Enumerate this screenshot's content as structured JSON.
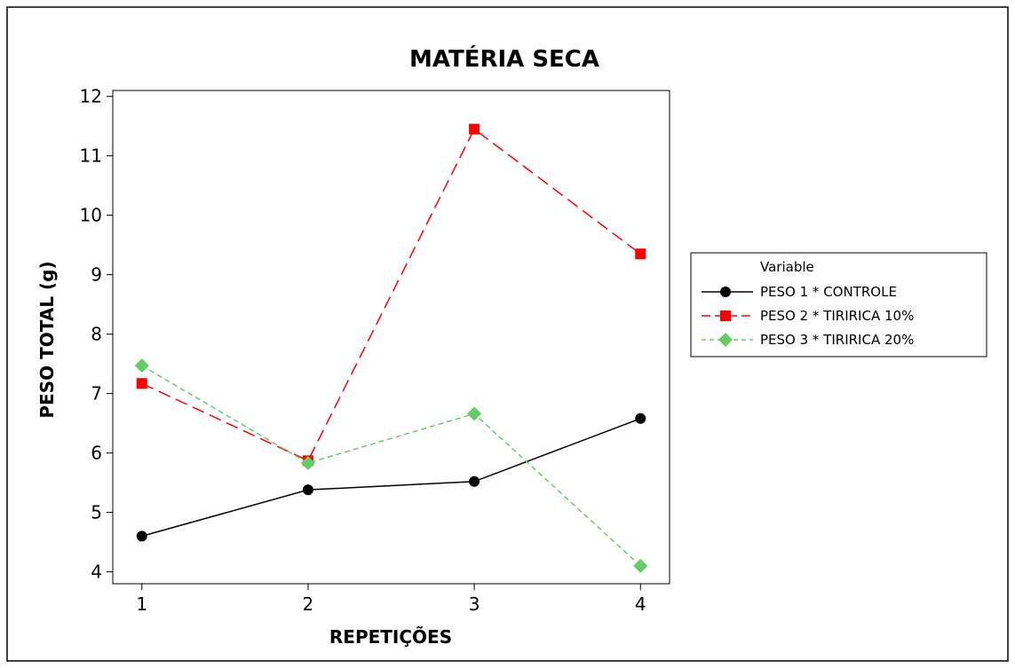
{
  "chart_data": {
    "type": "line",
    "title": "MATÉRIA SECA",
    "xlabel": "REPETIÇÕES",
    "ylabel": "PESO TOTAL (g)",
    "x": [
      1,
      2,
      3,
      4
    ],
    "xlim": [
      0.825,
      4.175
    ],
    "ylim": [
      3.8,
      12.1
    ],
    "xticks": [
      "1",
      "2",
      "3",
      "4"
    ],
    "yticks": [
      "4",
      "5",
      "6",
      "7",
      "8",
      "9",
      "10",
      "11",
      "12"
    ],
    "legend_title": "Variable",
    "legend_position": "right",
    "grid": false,
    "series": [
      {
        "name": "PESO 1 * CONTROLE",
        "values": [
          4.6,
          5.38,
          5.52,
          6.58
        ],
        "color": "#000000",
        "marker": "circle",
        "dash": ""
      },
      {
        "name": "PESO 2 * TIRIRICA 10%",
        "values": [
          7.17,
          5.87,
          11.45,
          9.35
        ],
        "color": "#ff0000",
        "marker": "square",
        "dash": "14 7"
      },
      {
        "name": "PESO 3 * TIRIRICA 20%",
        "values": [
          7.47,
          5.83,
          6.66,
          4.1
        ],
        "color": "#66cc66",
        "marker": "diamond",
        "dash": "6 4"
      }
    ]
  }
}
